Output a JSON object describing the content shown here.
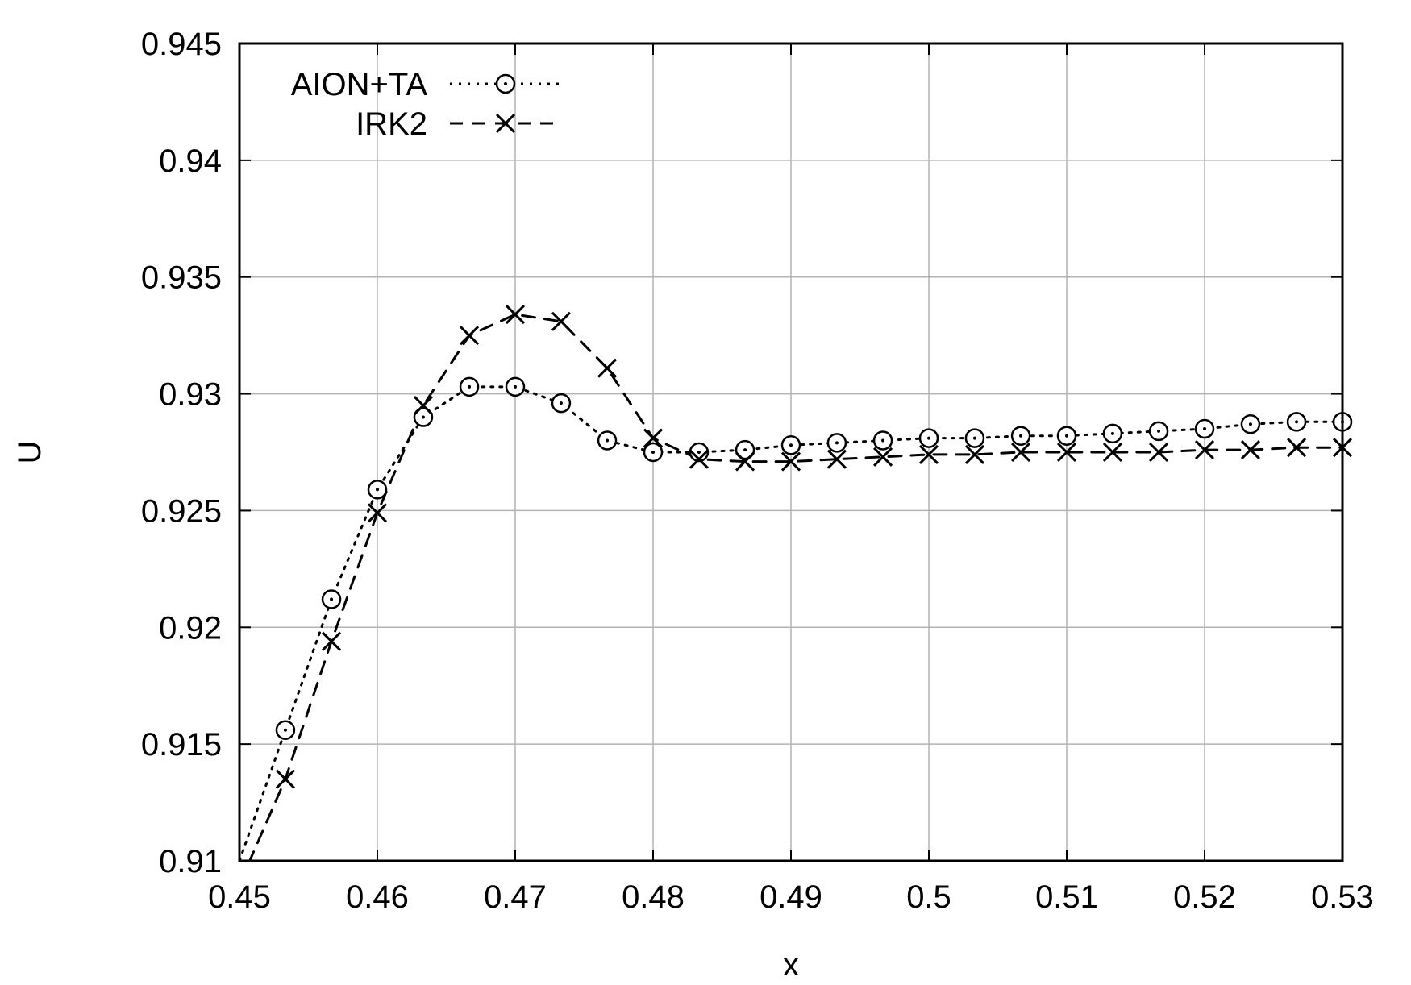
{
  "chart_data": {
    "type": "line",
    "xlabel": "x",
    "ylabel": "U",
    "xlim": [
      0.45,
      0.53
    ],
    "ylim": [
      0.91,
      0.945
    ],
    "xticks": [
      "0.45",
      "0.46",
      "0.47",
      "0.48",
      "0.49",
      "0.5",
      "0.51",
      "0.52",
      "0.53"
    ],
    "yticks": [
      "0.91",
      "0.915",
      "0.92",
      "0.925",
      "0.93",
      "0.935",
      "0.94",
      "0.945"
    ],
    "grid": true,
    "legend_position": "top-left",
    "series": [
      {
        "name": "AION+TA",
        "line_style": "dotted",
        "marker": "circle",
        "x": [
          0.45,
          0.45333,
          0.45667,
          0.46,
          0.46333,
          0.46667,
          0.47,
          0.47333,
          0.47667,
          0.48,
          0.48333,
          0.48667,
          0.49,
          0.49333,
          0.49667,
          0.5,
          0.50333,
          0.50667,
          0.51,
          0.51333,
          0.51667,
          0.52,
          0.52333,
          0.52667,
          0.53
        ],
        "y": [
          0.91,
          0.9156,
          0.9212,
          0.9259,
          0.929,
          0.9303,
          0.9303,
          0.9296,
          0.928,
          0.9275,
          0.9275,
          0.9276,
          0.9278,
          0.9279,
          0.928,
          0.9281,
          0.9281,
          0.9282,
          0.9282,
          0.9283,
          0.9284,
          0.9285,
          0.9287,
          0.9288,
          0.9288
        ]
      },
      {
        "name": "IRK2",
        "line_style": "dashed",
        "marker": "cross",
        "x": [
          0.45,
          0.45333,
          0.45667,
          0.46,
          0.46333,
          0.46667,
          0.47,
          0.47333,
          0.47667,
          0.48,
          0.48333,
          0.48667,
          0.49,
          0.49333,
          0.49667,
          0.5,
          0.50333,
          0.50667,
          0.51,
          0.51333,
          0.51667,
          0.52,
          0.52333,
          0.52667,
          0.53
        ],
        "y": [
          0.909,
          0.9135,
          0.9194,
          0.9249,
          0.9295,
          0.9325,
          0.9334,
          0.9331,
          0.9311,
          0.9281,
          0.9272,
          0.9271,
          0.9271,
          0.9272,
          0.9273,
          0.9274,
          0.9274,
          0.9275,
          0.9275,
          0.9275,
          0.9275,
          0.9276,
          0.9276,
          0.9277,
          0.9277
        ]
      }
    ]
  }
}
